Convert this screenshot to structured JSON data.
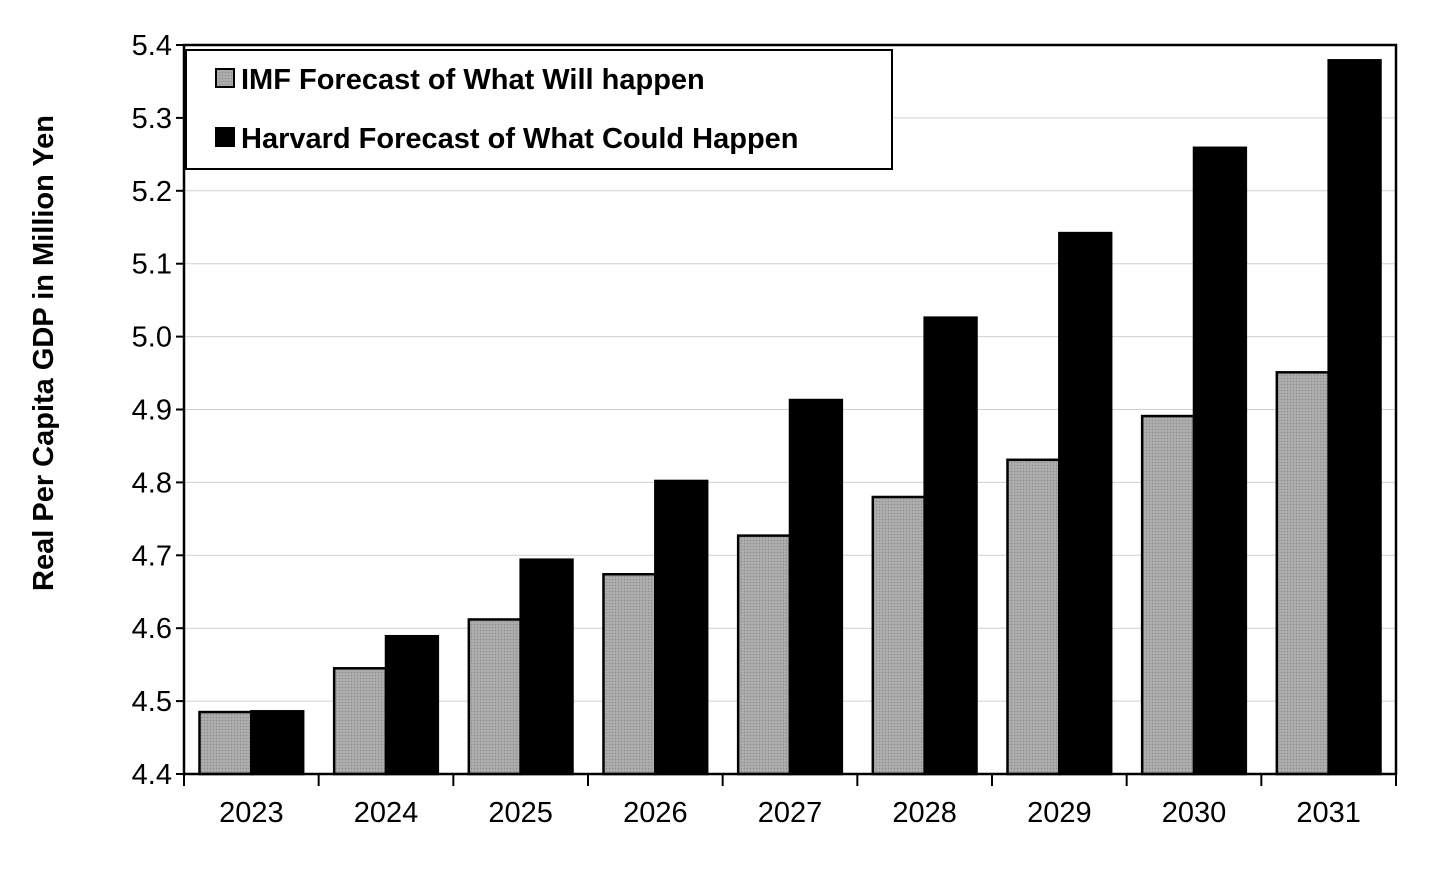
{
  "chart_data": {
    "type": "bar",
    "title": "",
    "xlabel": "",
    "ylabel": "Real Per Capita GDP in Million Yen",
    "categories": [
      "2023",
      "2024",
      "2025",
      "2026",
      "2027",
      "2028",
      "2029",
      "2030",
      "2031"
    ],
    "series": [
      {
        "name": "IMF Forecast of What Will happen",
        "color": "#a6a6a6",
        "values": [
          4.485,
          4.545,
          4.612,
          4.674,
          4.727,
          4.78,
          4.831,
          4.891,
          4.951
        ]
      },
      {
        "name": "Harvard Forecast of What Could Happen",
        "color": "#000000",
        "values": [
          4.486,
          4.589,
          4.694,
          4.802,
          4.913,
          5.026,
          5.142,
          5.259,
          5.379
        ]
      }
    ],
    "ylim": [
      4.4,
      5.4
    ],
    "yticks": [
      "4.4",
      "4.5",
      "4.6",
      "4.7",
      "4.8",
      "4.9",
      "5.0",
      "5.1",
      "5.2",
      "5.3",
      "5.4"
    ],
    "grid": true,
    "legend": "top-left"
  }
}
